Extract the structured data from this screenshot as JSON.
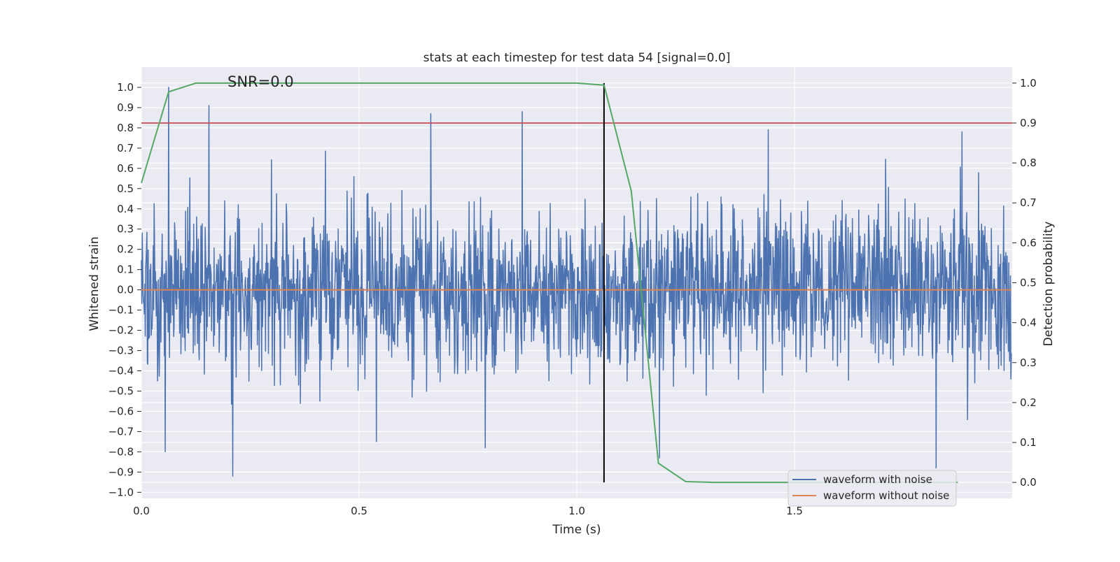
{
  "chart_data": {
    "type": "line",
    "title": "stats at each timestep for test data 54 [signal=0.0]",
    "xlabel": "Time (s)",
    "ylabel_left": "Whitened strain",
    "ylabel_right": "Detection probability",
    "annotation": "SNR=0.0",
    "xlim": [
      0.0,
      2.0
    ],
    "ylim_left": [
      -1.03,
      1.1
    ],
    "ylim_right": [
      -0.04,
      1.04
    ],
    "x_ticks": [
      0.0,
      0.5,
      1.0,
      1.5
    ],
    "x_tick_labels": [
      "0.0",
      "0.5",
      "1.0",
      "1.5"
    ],
    "y_left_ticks": [
      1.0,
      0.9,
      0.8,
      0.7,
      0.6,
      0.5,
      0.4,
      0.3,
      0.2,
      0.1,
      0.0,
      -0.1,
      -0.2,
      -0.3,
      -0.4,
      -0.5,
      -0.6,
      -0.7,
      -0.8,
      -0.9,
      -1.0
    ],
    "y_left_tick_labels": [
      "1.0",
      "0.9",
      "0.8",
      "0.7",
      "0.6",
      "0.5",
      "0.4",
      "0.3",
      "0.2",
      "0.1",
      "0.0",
      "−0.1",
      "−0.2",
      "−0.3",
      "−0.4",
      "−0.5",
      "−0.6",
      "−0.7",
      "−0.8",
      "−0.9",
      "−1.0"
    ],
    "y_right_ticks": [
      1.0,
      0.9,
      0.8,
      0.7,
      0.6,
      0.5,
      0.4,
      0.3,
      0.2,
      0.1,
      0.0
    ],
    "y_right_tick_labels": [
      "1.0",
      "0.9",
      "0.8",
      "0.7",
      "0.6",
      "0.5",
      "0.4",
      "0.3",
      "0.2",
      "0.1",
      "0.0"
    ],
    "grid": true,
    "legend_position": "lower right",
    "series": [
      {
        "name": "waveform with noise",
        "axis": "left",
        "color": "#4c72b0",
        "note": "dense noise trace, samples approx. within [-0.92, 1.0]",
        "n_samples": 2048,
        "seed": 54
      },
      {
        "name": "waveform without noise",
        "axis": "left",
        "color": "#dd8452",
        "values_constant": 0.0
      },
      {
        "name": "",
        "axis": "right",
        "color": "#55a868",
        "x": [
          0.0,
          0.0625,
          0.125,
          0.1875,
          0.25,
          0.3125,
          0.375,
          0.4375,
          0.5,
          0.5625,
          0.625,
          0.6875,
          0.75,
          0.8125,
          0.875,
          0.9375,
          1.0,
          1.0625,
          1.125,
          1.1875,
          1.25,
          1.3125,
          1.375,
          1.4375,
          1.5,
          1.5625,
          1.625,
          1.6875,
          1.75,
          1.8125,
          1.875
        ],
        "values": [
          0.75,
          0.978,
          1.0,
          1.0,
          1.0,
          1.0,
          1.0,
          1.0,
          1.0,
          1.0,
          1.0,
          1.0,
          1.0,
          1.0,
          1.0,
          1.0,
          1.0,
          0.995,
          0.73,
          0.048,
          0.002,
          0.0,
          0.0,
          0.0,
          0.0,
          0.0,
          0.0,
          0.0,
          0.0,
          0.0,
          0.0
        ]
      }
    ],
    "threshold": {
      "axis": "right",
      "value": 0.9,
      "color": "#c44e52"
    },
    "vline": {
      "x": 1.0625,
      "ymin_right": 0.0,
      "ymax_right": 1.0,
      "color": "#000000"
    },
    "waveform_peaks": [
      {
        "x": 0.0625,
        "y": 1.0
      },
      {
        "x": 0.155,
        "y": 0.91
      },
      {
        "x": 0.665,
        "y": 0.87
      },
      {
        "x": 0.875,
        "y": 0.88
      },
      {
        "x": 1.44,
        "y": 0.79
      },
      {
        "x": 1.885,
        "y": 0.78
      },
      {
        "x": 0.055,
        "y": -0.8
      },
      {
        "x": 0.21,
        "y": -0.92
      },
      {
        "x": 0.54,
        "y": -0.75
      },
      {
        "x": 0.79,
        "y": -0.78
      },
      {
        "x": 1.825,
        "y": -0.88
      },
      {
        "x": 1.19,
        "y": -0.83
      }
    ]
  }
}
